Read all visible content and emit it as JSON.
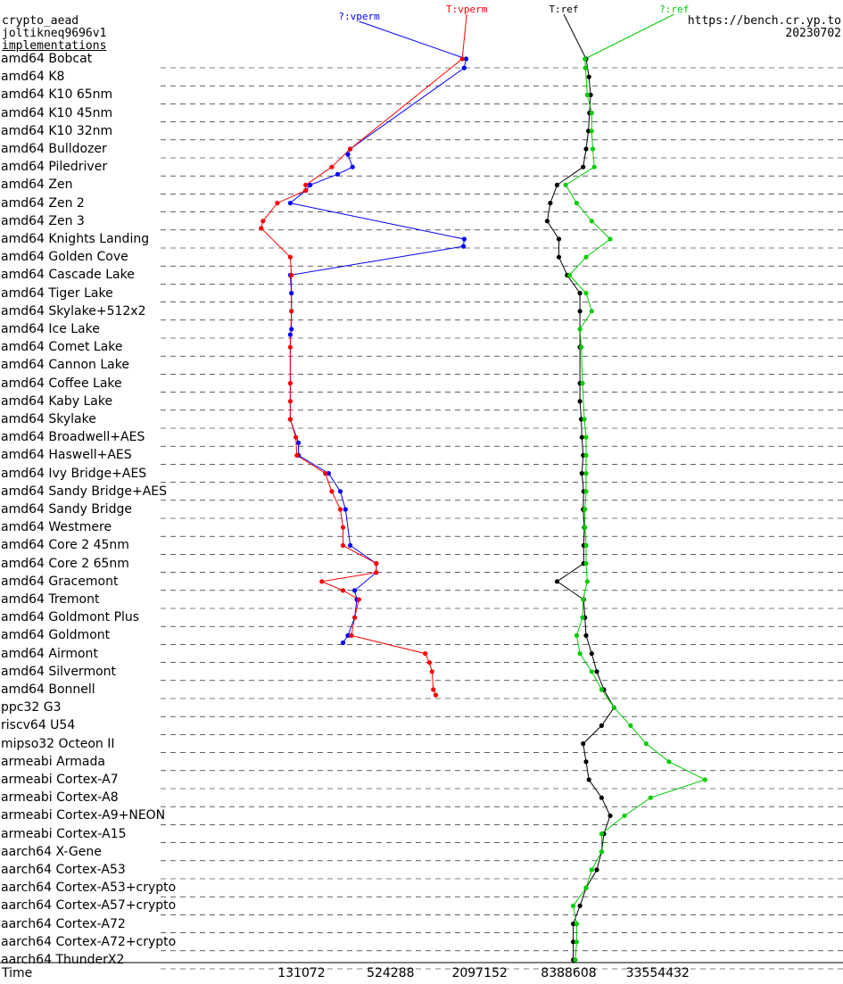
{
  "header": {
    "primitive": "crypto_aead",
    "implementation_name": "joltikneq9696v1",
    "implementations_link": "implementations",
    "site": "https://bench.cr.yp.to",
    "date": "20230702"
  },
  "colors": {
    "vperm": "#0000ff",
    "vperm_tuned": "#ff0000",
    "ref": "#000000",
    "ref_tuned": "#00cc00"
  },
  "chart_data": {
    "type": "line",
    "xlabel": "Time",
    "xscale": "log2",
    "x_ticks": [
      131072,
      524288,
      2097152,
      8388608,
      33554432
    ],
    "xlim": [
      18000,
      600000000
    ],
    "grid": "dashed horizontal row separators",
    "rows": [
      "amd64 Bobcat",
      "amd64 K8",
      "amd64 K10 65nm",
      "amd64 K10 45nm",
      "amd64 K10 32nm",
      "amd64 Bulldozer",
      "amd64 Piledriver",
      "amd64 Zen",
      "amd64 Zen 2",
      "amd64 Zen 3",
      "amd64 Knights Landing",
      "amd64 Golden Cove",
      "amd64 Cascade Lake",
      "amd64 Tiger Lake",
      "amd64 Skylake+512x2",
      "amd64 Ice Lake",
      "amd64 Comet Lake",
      "amd64 Cannon Lake",
      "amd64 Coffee Lake",
      "amd64 Kaby Lake",
      "amd64 Skylake",
      "amd64 Broadwell+AES",
      "amd64 Haswell+AES",
      "amd64 Ivy Bridge+AES",
      "amd64 Sandy Bridge+AES",
      "amd64 Sandy Bridge",
      "amd64 Westmere",
      "amd64 Core 2 45nm",
      "amd64 Core 2 65nm",
      "amd64 Gracemont",
      "amd64 Tremont",
      "amd64 Goldmont Plus",
      "amd64 Goldmont",
      "amd64 Airmont",
      "amd64 Silvermont",
      "amd64 Bonnell",
      "ppc32 G3",
      "riscv64 U54",
      "mipso32 Octeon II",
      "armeabi Armada",
      "armeabi Cortex-A7",
      "armeabi Cortex-A8",
      "armeabi Cortex-A9+NEON",
      "armeabi Cortex-A15",
      "aarch64 X-Gene",
      "aarch64 Cortex-A53",
      "aarch64 Cortex-A53+crypto",
      "aarch64 Cortex-A57+crypto",
      "aarch64 Cortex-A72",
      "aarch64 Cortex-A72+crypto",
      "aarch64 ThunderX2"
    ],
    "series": [
      {
        "name": "?:vperm",
        "color": "#0000ff",
        "points": [
          [
            0,
            1700000
          ],
          [
            0.5,
            1650000
          ],
          [
            5,
            280000
          ],
          [
            5.3,
            270000
          ],
          [
            6,
            290000
          ],
          [
            6.4,
            230000
          ],
          [
            7,
            150000
          ],
          [
            7.3,
            140000
          ],
          [
            8,
            110000
          ],
          [
            10,
            1650000
          ],
          [
            10.4,
            1630000
          ],
          [
            12,
            110000
          ],
          [
            13,
            112000
          ],
          [
            14,
            112000
          ],
          [
            15,
            112000
          ],
          [
            15.3,
            110000
          ],
          [
            20,
            110000
          ],
          [
            21.3,
            125000
          ],
          [
            22,
            125000
          ],
          [
            23,
            200000
          ],
          [
            24,
            240000
          ],
          [
            25,
            260000
          ],
          [
            27,
            280000
          ],
          [
            28,
            420000
          ],
          [
            28.5,
            420000
          ],
          [
            29.5,
            300000
          ],
          [
            30,
            310000
          ],
          [
            31,
            300000
          ],
          [
            32,
            270000
          ],
          [
            32.4,
            250000
          ]
        ]
      },
      {
        "name": "T:vperm",
        "color": "#ff0000",
        "points": [
          [
            0,
            1600000
          ],
          [
            5,
            280000
          ],
          [
            6,
            210000
          ],
          [
            7,
            140000
          ],
          [
            7.3,
            140000
          ],
          [
            8,
            90000
          ],
          [
            9,
            72000
          ],
          [
            9.4,
            70000
          ],
          [
            11,
            110000
          ],
          [
            12,
            112000
          ],
          [
            14,
            112000
          ],
          [
            16,
            110000
          ],
          [
            18,
            110000
          ],
          [
            19,
            110000
          ],
          [
            20,
            110000
          ],
          [
            21,
            120000
          ],
          [
            22,
            122000
          ],
          [
            23,
            190000
          ],
          [
            24,
            210000
          ],
          [
            25,
            240000
          ],
          [
            26,
            250000
          ],
          [
            27,
            250000
          ],
          [
            28,
            420000
          ],
          [
            28.5,
            420000
          ],
          [
            29,
            180000
          ],
          [
            29.5,
            250000
          ],
          [
            30,
            320000
          ],
          [
            31,
            300000
          ],
          [
            32,
            285000
          ],
          [
            33,
            900000
          ],
          [
            33.5,
            960000
          ],
          [
            34,
            1000000
          ],
          [
            35,
            1020000
          ],
          [
            35.3,
            1060000
          ]
        ]
      },
      {
        "name": "T:ref",
        "color": "#000000",
        "points": [
          [
            0,
            11000000
          ],
          [
            1,
            11500000
          ],
          [
            2,
            11800000
          ],
          [
            3,
            11600000
          ],
          [
            4,
            11400000
          ],
          [
            5,
            11000000
          ],
          [
            6,
            10500000
          ],
          [
            7,
            7000000
          ],
          [
            8,
            6300000
          ],
          [
            9,
            6000000
          ],
          [
            10,
            7200000
          ],
          [
            11,
            7200000
          ],
          [
            12,
            8200000
          ],
          [
            13,
            10000000
          ],
          [
            14,
            10000000
          ],
          [
            16,
            10000000
          ],
          [
            18,
            10000000
          ],
          [
            19,
            10000000
          ],
          [
            20,
            10200000
          ],
          [
            21,
            10300000
          ],
          [
            22,
            10500000
          ],
          [
            23,
            10300000
          ],
          [
            24,
            10600000
          ],
          [
            25,
            10500000
          ],
          [
            26,
            10700000
          ],
          [
            27,
            10600000
          ],
          [
            28,
            10600000
          ],
          [
            29,
            7000000
          ],
          [
            30,
            10600000
          ],
          [
            31,
            10800000
          ],
          [
            32,
            11000000
          ],
          [
            33,
            12000000
          ],
          [
            34,
            13000000
          ],
          [
            35,
            14500000
          ],
          [
            36,
            17000000
          ],
          [
            37,
            14000000
          ],
          [
            38,
            10500000
          ],
          [
            39,
            11000000
          ],
          [
            40,
            11500000
          ],
          [
            41,
            14000000
          ],
          [
            42,
            16000000
          ],
          [
            43,
            14500000
          ],
          [
            44,
            14000000
          ],
          [
            45,
            13000000
          ],
          [
            46,
            11000000
          ],
          [
            47,
            10000000
          ],
          [
            48,
            9000000
          ],
          [
            49,
            9000000
          ],
          [
            50,
            9000000
          ]
        ]
      },
      {
        "name": "?:ref",
        "color": "#00cc00",
        "points": [
          [
            0,
            10800000
          ],
          [
            0.5,
            10900000
          ],
          [
            2,
            11200000
          ],
          [
            3,
            12000000
          ],
          [
            4,
            12000000
          ],
          [
            5,
            12200000
          ],
          [
            6,
            12500000
          ],
          [
            7,
            8000000
          ],
          [
            8,
            9500000
          ],
          [
            9,
            12000000
          ],
          [
            10,
            16000000
          ],
          [
            11,
            11000000
          ],
          [
            12,
            8500000
          ],
          [
            13,
            11000000
          ],
          [
            14,
            12000000
          ],
          [
            15,
            10000000
          ],
          [
            16,
            10200000
          ],
          [
            18,
            10400000
          ],
          [
            20,
            10700000
          ],
          [
            21,
            11000000
          ],
          [
            22,
            11000000
          ],
          [
            23,
            11000000
          ],
          [
            24,
            11000000
          ],
          [
            25,
            10800000
          ],
          [
            26,
            10800000
          ],
          [
            27,
            11000000
          ],
          [
            28,
            11000000
          ],
          [
            29,
            11200000
          ],
          [
            30,
            10500000
          ],
          [
            31,
            10400000
          ],
          [
            32,
            9500000
          ],
          [
            33,
            10000000
          ],
          [
            34,
            12000000
          ],
          [
            35,
            14000000
          ],
          [
            36,
            17000000
          ],
          [
            37,
            22000000
          ],
          [
            38,
            28000000
          ],
          [
            39,
            40000000
          ],
          [
            40,
            70000000
          ],
          [
            41,
            30000000
          ],
          [
            42,
            20000000
          ],
          [
            43,
            14000000
          ],
          [
            44,
            14000000
          ],
          [
            45,
            12000000
          ],
          [
            46,
            11000000
          ],
          [
            47,
            9000000
          ],
          [
            48,
            9500000
          ],
          [
            49,
            9500000
          ],
          [
            50,
            9300000
          ]
        ]
      }
    ]
  }
}
